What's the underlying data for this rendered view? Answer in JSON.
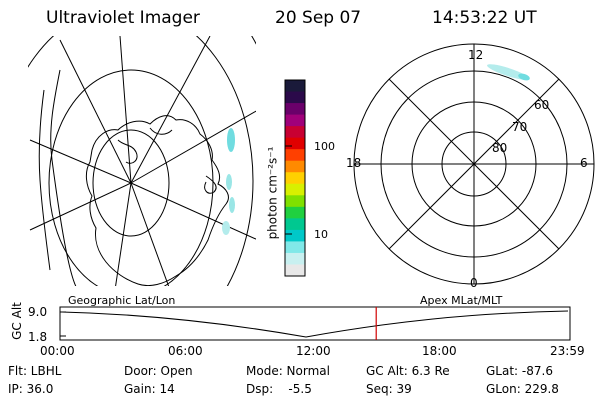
{
  "header": {
    "instrument": "Ultraviolet Imager",
    "date": "20 Sep 07",
    "time": "14:53:22 UT"
  },
  "colorbar": {
    "label": "photon cm⁻²s⁻¹",
    "ticks": [
      "100",
      "10"
    ],
    "colors": [
      "#1a1a3a",
      "#2b0a4a",
      "#6a006a",
      "#a0007a",
      "#c80032",
      "#e00000",
      "#ff4000",
      "#ff8a00",
      "#ffd000",
      "#d8f000",
      "#80e000",
      "#20d040",
      "#00c890",
      "#00c8c8",
      "#80e8e8",
      "#c8f0f0",
      "#e8e8e8"
    ]
  },
  "left_panel": {
    "title": "Geographic Lat/Lon"
  },
  "right_panel": {
    "title": "Apex MLat/MLT",
    "mlt_labels": [
      "12",
      "18",
      "6",
      "0"
    ],
    "lat_labels": [
      "60",
      "70",
      "80"
    ]
  },
  "timeline": {
    "ylabel": "GC Alt",
    "yticks": [
      "9.0",
      "1.8"
    ],
    "xticks": [
      "00:00",
      "06:00",
      "12:00",
      "18:00",
      "23:59"
    ],
    "current_time_fraction": 0.62,
    "marker_color": "#d00000"
  },
  "status": {
    "flt": "Flt: LBHL",
    "ip": "IP: 36.0",
    "door": "Door: Open",
    "gain": "Gain: 14",
    "mode": "Mode: Normal",
    "dsp": "Dsp:    -5.5",
    "gcalt": "GC Alt: 6.3 Re",
    "seq": "Seq: 39",
    "glat": "GLat: -87.6",
    "glon": "GLon: 229.8"
  }
}
